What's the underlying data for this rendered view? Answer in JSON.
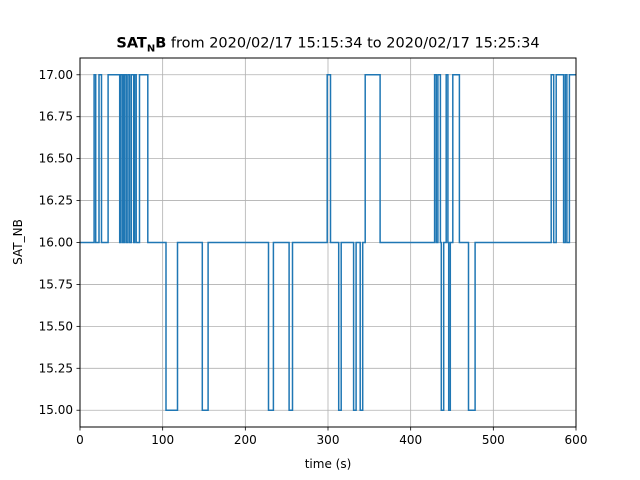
{
  "chart_data": {
    "type": "line",
    "step": "post",
    "title": {
      "name_main": "SAT",
      "name_sub": "N",
      "name_tail": "B",
      "rest": " from 2020/02/17 15:15:34 to 2020/02/17 15:25:34"
    },
    "xlabel": "time (s)",
    "ylabel": "SAT_NB",
    "xlim": [
      0,
      600
    ],
    "ylim": [
      14.9,
      17.1
    ],
    "xticks": [
      0,
      100,
      200,
      300,
      400,
      500,
      600
    ],
    "xtick_labels": [
      "0",
      "100",
      "200",
      "300",
      "400",
      "500",
      "600"
    ],
    "yticks": [
      15.0,
      15.25,
      15.5,
      15.75,
      16.0,
      16.25,
      16.5,
      16.75,
      17.0
    ],
    "ytick_labels": [
      "15.00",
      "15.25",
      "15.50",
      "15.75",
      "16.00",
      "16.25",
      "16.50",
      "16.75",
      "17.00"
    ],
    "grid": true,
    "line_color": "#1f77b4",
    "series": [
      {
        "x": [
          0,
          17,
          19,
          23,
          26,
          34,
          46,
          48,
          49,
          51,
          52,
          53,
          54,
          56,
          58,
          60,
          62,
          65,
          66,
          68,
          72,
          82,
          84,
          104,
          118,
          148,
          155,
          228,
          234,
          253,
          257,
          299,
          303,
          313,
          316,
          331,
          334,
          339,
          342,
          345,
          363,
          429,
          431,
          433,
          436,
          437,
          440,
          443,
          445,
          446,
          448,
          451,
          459,
          470,
          478,
          566,
          570,
          573,
          576,
          585,
          587,
          589,
          592,
          600
        ],
        "y": [
          16,
          17,
          16,
          17,
          16,
          17,
          17,
          16,
          17,
          16,
          17,
          16,
          17,
          16,
          17,
          16,
          17,
          16,
          17,
          16,
          17,
          16,
          16,
          15,
          16,
          15,
          16,
          15,
          16,
          15,
          16,
          17,
          16,
          15,
          16,
          15,
          16,
          15,
          16,
          17,
          16,
          17,
          16,
          17,
          16,
          15,
          16,
          17,
          16,
          15,
          16,
          17,
          16,
          15,
          16,
          16,
          17,
          16,
          17,
          16,
          17,
          16,
          17,
          17
        ]
      }
    ]
  }
}
